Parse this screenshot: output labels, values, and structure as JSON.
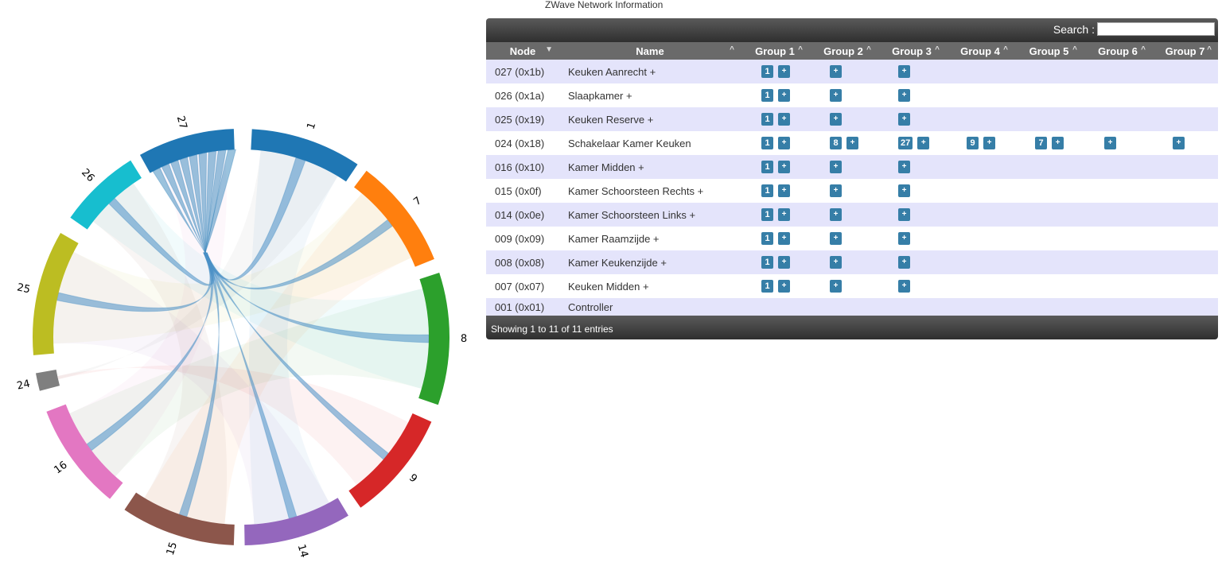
{
  "page_title": "ZWave Network Information",
  "search": {
    "label": "Search :",
    "value": ""
  },
  "columns": [
    "Node",
    "Name",
    "Group 1",
    "Group 2",
    "Group 3",
    "Group 4",
    "Group 5",
    "Group 6",
    "Group 7"
  ],
  "add_label": "+",
  "rows": [
    {
      "node": "027 (0x1b)",
      "name": "Keuken Aanrecht +",
      "groups": [
        [
          "1"
        ],
        [],
        [],
        null,
        null,
        null,
        null
      ]
    },
    {
      "node": "026 (0x1a)",
      "name": "Slaapkamer +",
      "groups": [
        [
          "1"
        ],
        [],
        [],
        null,
        null,
        null,
        null
      ]
    },
    {
      "node": "025 (0x19)",
      "name": "Keuken Reserve +",
      "groups": [
        [
          "1"
        ],
        [],
        [],
        null,
        null,
        null,
        null
      ]
    },
    {
      "node": "024 (0x18)",
      "name": "Schakelaar Kamer Keuken",
      "groups": [
        [
          "1"
        ],
        [
          "8"
        ],
        [
          "27"
        ],
        [
          "9"
        ],
        [
          "7"
        ],
        [],
        []
      ]
    },
    {
      "node": "016 (0x10)",
      "name": "Kamer Midden +",
      "groups": [
        [
          "1"
        ],
        [],
        [],
        null,
        null,
        null,
        null
      ]
    },
    {
      "node": "015 (0x0f)",
      "name": "Kamer Schoorsteen Rechts +",
      "groups": [
        [
          "1"
        ],
        [],
        [],
        null,
        null,
        null,
        null
      ]
    },
    {
      "node": "014 (0x0e)",
      "name": "Kamer Schoorsteen Links +",
      "groups": [
        [
          "1"
        ],
        [],
        [],
        null,
        null,
        null,
        null
      ]
    },
    {
      "node": "009 (0x09)",
      "name": "Kamer Raamzijde +",
      "groups": [
        [
          "1"
        ],
        [],
        [],
        null,
        null,
        null,
        null
      ]
    },
    {
      "node": "008 (0x08)",
      "name": "Kamer Keukenzijde +",
      "groups": [
        [
          "1"
        ],
        [],
        [],
        null,
        null,
        null,
        null
      ]
    },
    {
      "node": "007 (0x07)",
      "name": "Keuken Midden +",
      "groups": [
        [
          "1"
        ],
        [],
        [],
        null,
        null,
        null,
        null
      ]
    },
    {
      "node": "001 (0x01)",
      "name": "Controller",
      "groups": [
        null,
        null,
        null,
        null,
        null,
        null,
        null
      ]
    }
  ],
  "footer": {
    "info": "Showing 1 to 11 of 11 entries"
  },
  "chord": {
    "nodes": [
      {
        "label": "1",
        "color": "#1f77b4"
      },
      {
        "label": "7",
        "color": "#ff7f0e"
      },
      {
        "label": "8",
        "color": "#2ca02c"
      },
      {
        "label": "9",
        "color": "#d62728"
      },
      {
        "label": "14",
        "color": "#9467bd"
      },
      {
        "label": "15",
        "color": "#8c564b"
      },
      {
        "label": "16",
        "color": "#e377c2"
      },
      {
        "label": "24",
        "color": "#7f7f7f"
      },
      {
        "label": "25",
        "color": "#bcbd22"
      },
      {
        "label": "26",
        "color": "#17becf"
      },
      {
        "label": "27",
        "color": "#1f77b4"
      }
    ]
  }
}
